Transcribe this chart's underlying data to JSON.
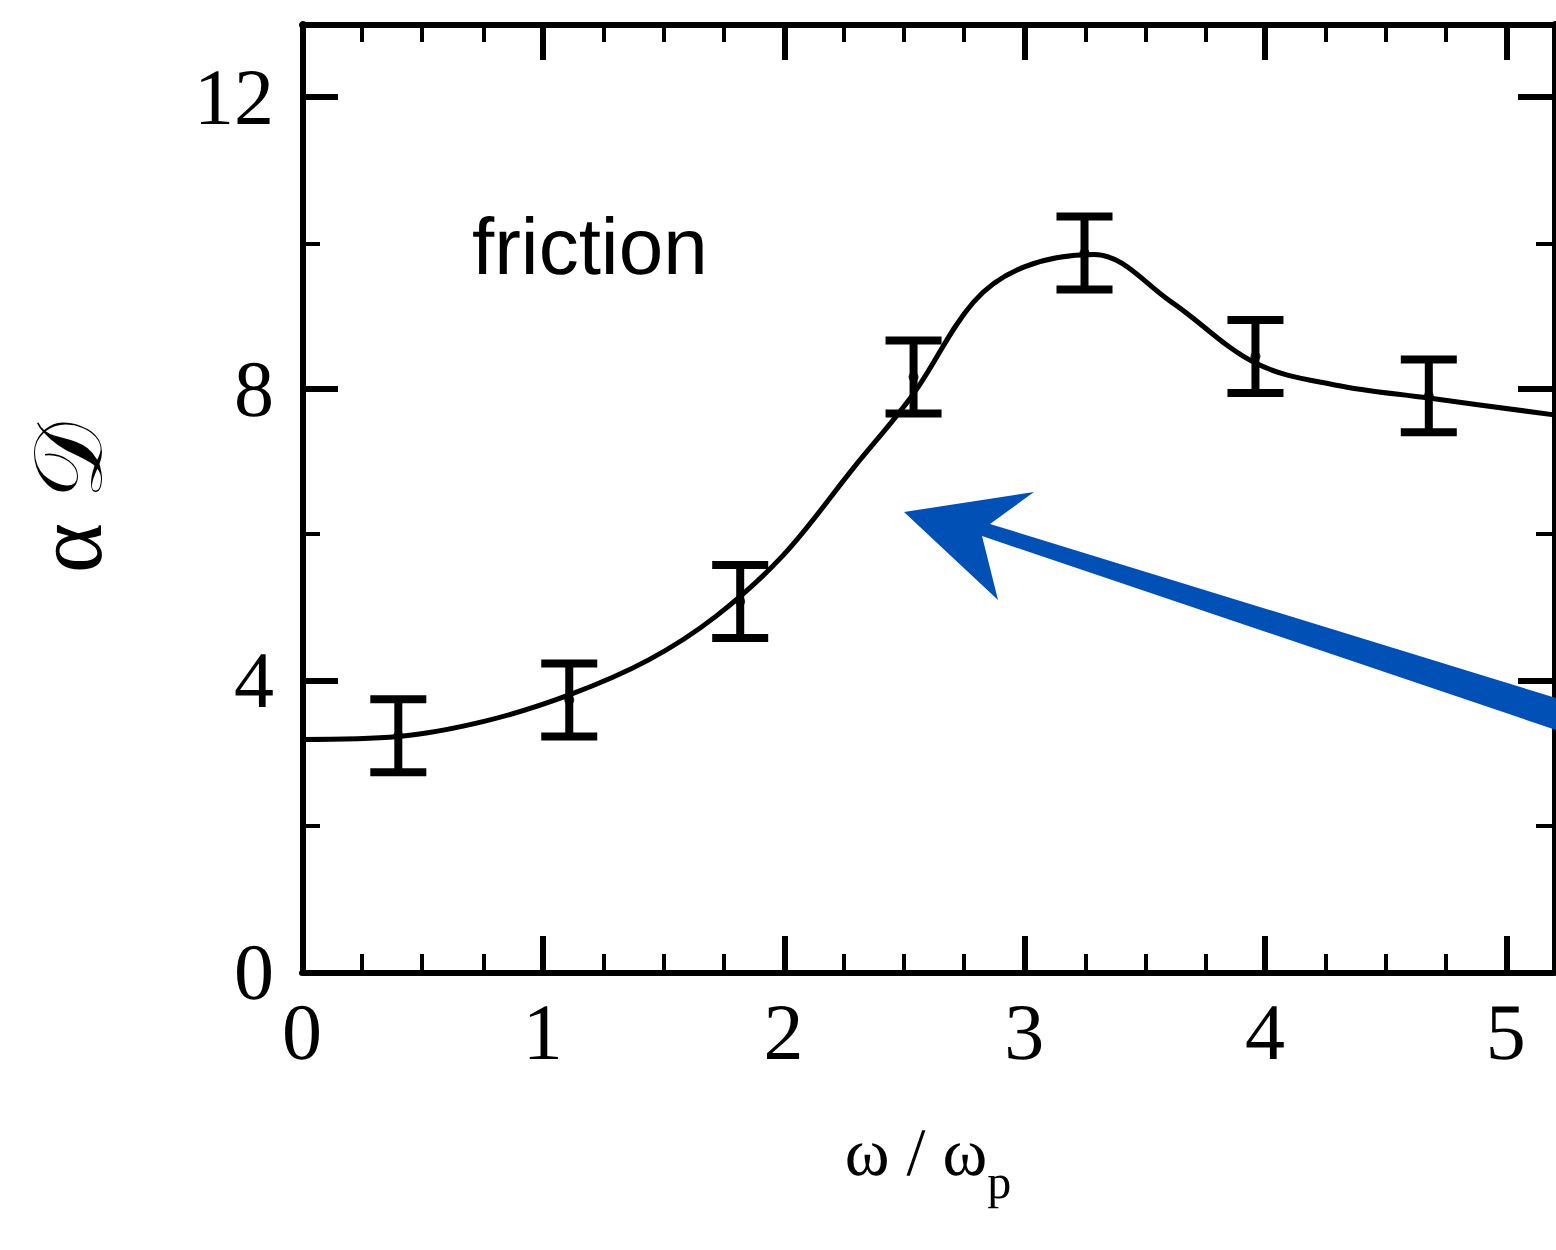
{
  "chart_data": {
    "type": "scatter",
    "xlabel": "ω / ω$_{p}$",
    "ylabel": "α 𝒟",
    "xlim": [
      0,
      5.2
    ],
    "xticks": [
      0,
      1,
      2,
      3,
      4,
      5
    ],
    "ylim": [
      0,
      13
    ],
    "yticks": [
      0,
      4,
      8,
      12
    ],
    "grid": false,
    "annotations": [
      "friction"
    ],
    "series": [
      {
        "color": "#000000",
        "x": [
          0.4,
          1.11,
          1.82,
          2.54,
          3.25,
          3.96,
          4.68
        ],
        "values": [
          3.24,
          3.73,
          5.08,
          8.16,
          9.86,
          8.44,
          7.9
        ],
        "errors": [
          0.5,
          0.5,
          0.5,
          0.5,
          0.5,
          0.5,
          0.5
        ]
      },
      {
        "type": "line",
        "color": "#000000",
        "line_style": "solid",
        "x": [
          0,
          0.4,
          0.76,
          1.11,
          1.44,
          1.72,
          2.0,
          2.29,
          2.54,
          2.79,
          3.0,
          3.29,
          3.61,
          3.96,
          4.29,
          4.68,
          5.2
        ],
        "values": [
          3.19,
          3.23,
          3.44,
          3.8,
          4.28,
          4.88,
          5.72,
          6.91,
          7.93,
          9.19,
          9.67,
          9.84,
          9.19,
          8.35,
          8.05,
          7.87,
          7.64
        ]
      }
    ]
  }
}
